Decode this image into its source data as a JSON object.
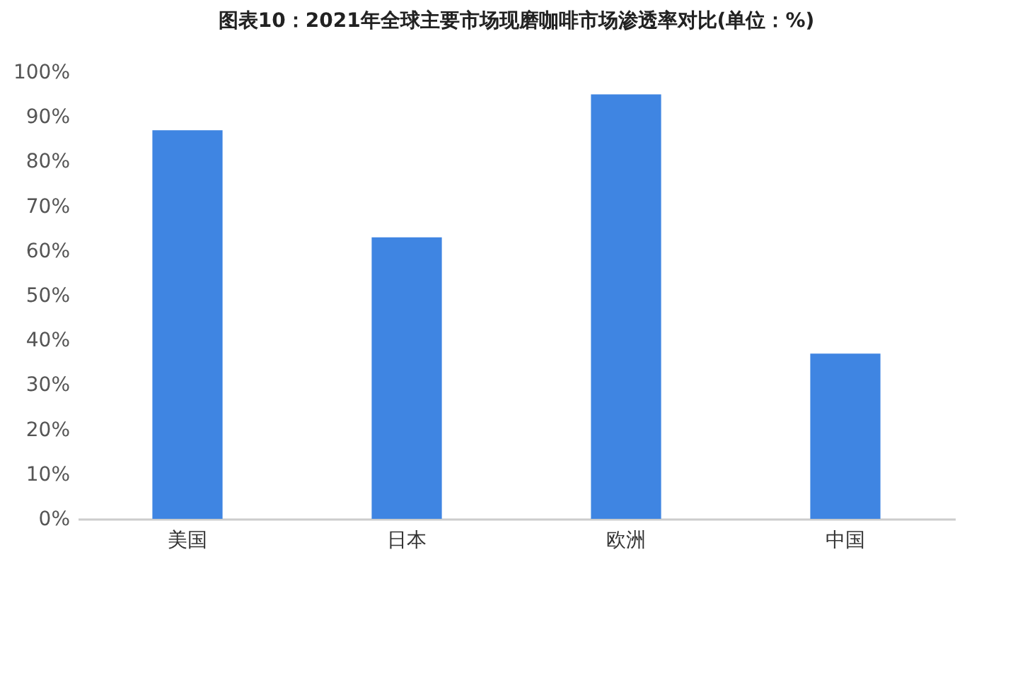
{
  "chart_data": {
    "type": "bar",
    "title": "图表10：2021年全球主要市场现磨咖啡市场渗透率对比(单位：%)",
    "categories": [
      "美国",
      "日本",
      "欧洲",
      "中国"
    ],
    "values": [
      87,
      63,
      95,
      37
    ],
    "color": "#3f85e2",
    "ylim": [
      0,
      100
    ],
    "yticks": [
      {
        "value": 0,
        "label": "0%"
      },
      {
        "value": 10,
        "label": "10%"
      },
      {
        "value": 20,
        "label": "20%"
      },
      {
        "value": 30,
        "label": "30%"
      },
      {
        "value": 40,
        "label": "40%"
      },
      {
        "value": 50,
        "label": "50%"
      },
      {
        "value": 60,
        "label": "60%"
      },
      {
        "value": 70,
        "label": "70%"
      },
      {
        "value": 80,
        "label": "80%"
      },
      {
        "value": 90,
        "label": "90%"
      },
      {
        "value": 100,
        "label": "100%"
      }
    ],
    "grid": false
  }
}
